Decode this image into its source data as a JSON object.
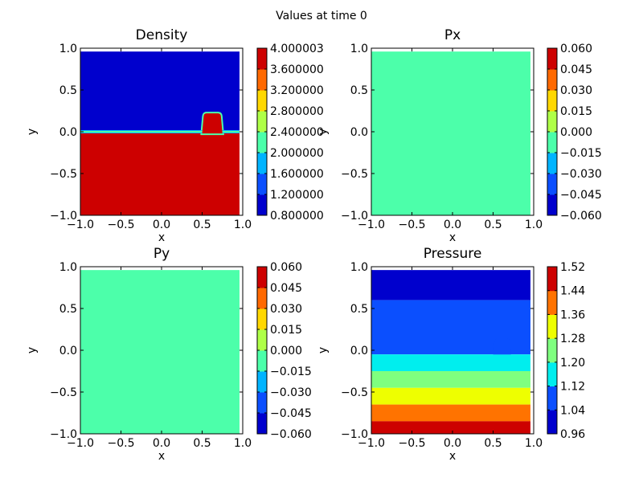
{
  "figure": {
    "suptitle": "Values at time 0"
  },
  "chart_data": [
    {
      "type": "heatmap",
      "title": "Density",
      "xlabel": "x",
      "ylabel": "y",
      "xlim": [
        -1.0,
        1.0
      ],
      "ylim": [
        -1.0,
        1.0
      ],
      "xticks": [
        "−1.0",
        "−0.5",
        "0.0",
        "0.5",
        "1.0"
      ],
      "yticks": [
        "−1.0",
        "−0.5",
        "0.0",
        "0.5",
        "1.0"
      ],
      "domain_max": 0.96,
      "colorbar": {
        "ticks": [
          "0.800000",
          "1.200000",
          "1.600000",
          "2.000000",
          "2.400000",
          "2.800000",
          "3.200000",
          "3.600000",
          "4.000003"
        ],
        "colors": [
          "#0000cd",
          "#0b4ffe",
          "#00b4ff",
          "#4cffaa",
          "#afff47",
          "#ffd800",
          "#ff6900",
          "#cd0000"
        ]
      },
      "regions": [
        {
          "level": 0,
          "y0": 0.0,
          "y1": 1.0
        },
        {
          "level": 7,
          "y0": -1.0,
          "y1": 0.0
        },
        {
          "level": 7,
          "x0": 0.5,
          "x1": 0.75,
          "y0": -0.02,
          "y1": 0.22,
          "feature": "bump"
        }
      ]
    },
    {
      "type": "heatmap",
      "title": "Px",
      "xlabel": "x",
      "ylabel": "y",
      "xlim": [
        -1.0,
        1.0
      ],
      "ylim": [
        -1.0,
        1.0
      ],
      "xticks": [
        "−1.0",
        "−0.5",
        "0.0",
        "0.5",
        "1.0"
      ],
      "yticks": [
        "−1.0",
        "−0.5",
        "0.0",
        "0.5",
        "1.0"
      ],
      "domain_max": 0.96,
      "colorbar": {
        "ticks": [
          "−0.060",
          "−0.045",
          "−0.030",
          "−0.015",
          "0.000",
          "0.015",
          "0.030",
          "0.045",
          "0.060"
        ],
        "colors": [
          "#0000cd",
          "#0b4ffe",
          "#00b4ff",
          "#4cffaa",
          "#afff47",
          "#ffd800",
          "#ff6900",
          "#cd0000"
        ]
      },
      "regions": [
        {
          "level": 3,
          "y0": -1.0,
          "y1": 1.0
        }
      ]
    },
    {
      "type": "heatmap",
      "title": "Py",
      "xlabel": "x",
      "ylabel": "y",
      "xlim": [
        -1.0,
        1.0
      ],
      "ylim": [
        -1.0,
        1.0
      ],
      "xticks": [
        "−1.0",
        "−0.5",
        "0.0",
        "0.5",
        "1.0"
      ],
      "yticks": [
        "−1.0",
        "−0.5",
        "0.0",
        "0.5",
        "1.0"
      ],
      "domain_max": 0.96,
      "colorbar": {
        "ticks": [
          "−0.060",
          "−0.045",
          "−0.030",
          "−0.015",
          "0.000",
          "0.015",
          "0.030",
          "0.045",
          "0.060"
        ],
        "colors": [
          "#0000cd",
          "#0b4ffe",
          "#00b4ff",
          "#4cffaa",
          "#afff47",
          "#ffd800",
          "#ff6900",
          "#cd0000"
        ]
      },
      "regions": [
        {
          "level": 3,
          "y0": -1.0,
          "y1": 1.0
        }
      ]
    },
    {
      "type": "heatmap",
      "title": "Pressure",
      "xlabel": "x",
      "ylabel": "y",
      "xlim": [
        -1.0,
        1.0
      ],
      "ylim": [
        -1.0,
        1.0
      ],
      "xticks": [
        "−1.0",
        "−0.5",
        "0.0",
        "0.5",
        "1.0"
      ],
      "yticks": [
        "−1.0",
        "−0.5",
        "0.0",
        "0.5",
        "1.0"
      ],
      "domain_max": 0.96,
      "colorbar": {
        "ticks": [
          "0.96",
          "1.04",
          "1.12",
          "1.20",
          "1.28",
          "1.36",
          "1.44",
          "1.52"
        ],
        "colors": [
          "#0000cd",
          "#0b4ffe",
          "#00eeee",
          "#7fff7f",
          "#eeff00",
          "#ff7300",
          "#cd0000"
        ]
      },
      "regions": [
        {
          "level": 0,
          "y0": 0.6,
          "y1": 1.0
        },
        {
          "level": 1,
          "y0": -0.05,
          "y1": 0.6
        },
        {
          "level": 2,
          "y0": -0.25,
          "y1": -0.05
        },
        {
          "level": 3,
          "y0": -0.45,
          "y1": -0.25
        },
        {
          "level": 4,
          "y0": -0.65,
          "y1": -0.45
        },
        {
          "level": 5,
          "y0": -0.85,
          "y1": -0.65
        },
        {
          "level": 6,
          "y0": -1.0,
          "y1": -0.85
        },
        {
          "level": 1,
          "x0": 0.5,
          "x1": 0.72,
          "y0": -0.05,
          "y1": 0.14,
          "feature": "bump"
        }
      ]
    }
  ]
}
